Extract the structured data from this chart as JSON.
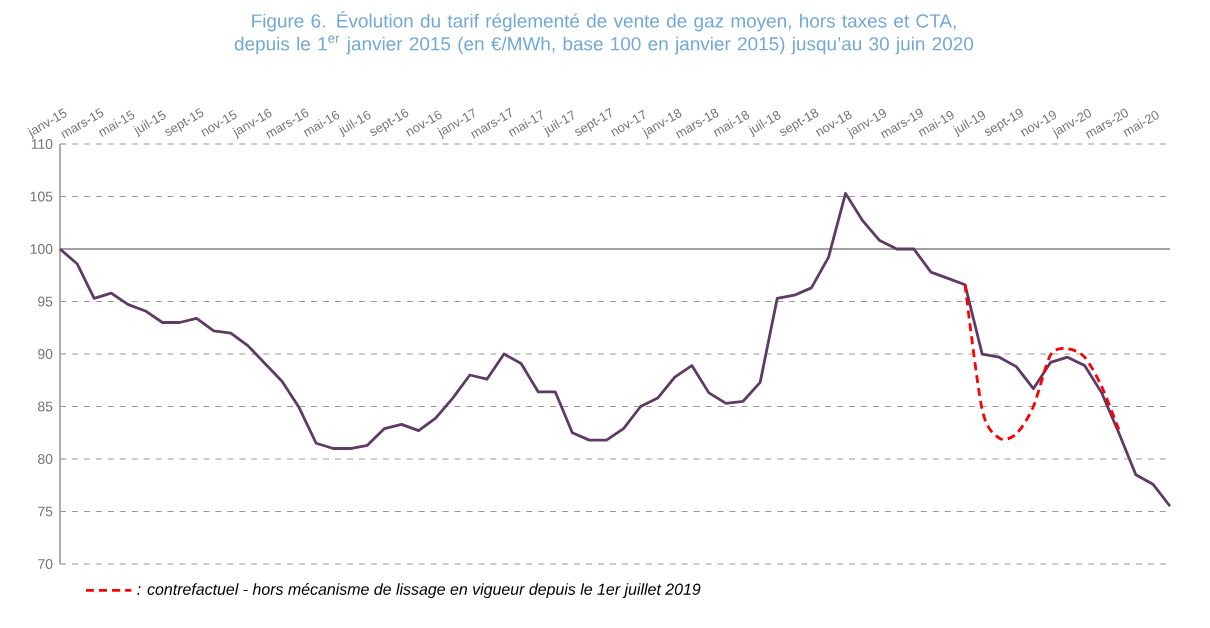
{
  "chart_data": {
    "type": "line",
    "title": "Figure 6. Évolution du tarif réglementé de vente de gaz moyen, hors taxes et CTA, depuis le 1$^{er}$ janvier 2015 (en €/MWh, base 100 en janvier 2015) jusqu’au 30 juin 2020",
    "categories": [
      "janv-15",
      null,
      "mars-15",
      null,
      "mai-15",
      null,
      "juil-15",
      null,
      "sept-15",
      null,
      "nov-15",
      null,
      "janv-16",
      null,
      "mars-16",
      null,
      "mai-16",
      null,
      "juil-16",
      null,
      "sept-16",
      null,
      "nov-16",
      null,
      "janv-17",
      null,
      "mars-17",
      null,
      "mai-17",
      null,
      "juil-17",
      null,
      "sept-17",
      null,
      "nov-17",
      null,
      "janv-18",
      null,
      "mars-18",
      null,
      "mai-18",
      null,
      "juil-18",
      null,
      "sept-18",
      null,
      "nov-18",
      null,
      "janv-19",
      null,
      "mars-19",
      null,
      "mai-19",
      null,
      "juil-19",
      null,
      "sept-19",
      null,
      "nov-19",
      null,
      "janv-20",
      null,
      "mars-20",
      null,
      "mai-20",
      null
    ],
    "series": [
      {
        "color": "#5e3a64",
        "line_style": "solid",
        "values": [
          100,
          98.6,
          95.3,
          95.8,
          94.7,
          94.1,
          93.0,
          93.0,
          93.4,
          92.2,
          92.0,
          90.8,
          89.1,
          87.4,
          84.9,
          81.5,
          81.0,
          81.0,
          81.3,
          82.9,
          83.3,
          82.7,
          83.9,
          85.8,
          88.0,
          87.6,
          90.0,
          89.1,
          86.4,
          86.4,
          82.5,
          81.8,
          81.8,
          82.9,
          85.0,
          85.8,
          87.8,
          88.9,
          86.3,
          85.3,
          85.5,
          87.3,
          95.3,
          95.6,
          96.3,
          99.2,
          105.3,
          102.7,
          100.8,
          100.0,
          100.0,
          97.8,
          97.2,
          96.6,
          90.0,
          89.7,
          88.8,
          86.7,
          89.2,
          89.7,
          88.9,
          86.3,
          82.5,
          78.5,
          77.6,
          75.5
        ]
      },
      {
        "name": ": contrefactuel - hors mécanisme de lissage en vigueur depuis le 1er juillet 2019",
        "color": "#ff0000",
        "line_style": "dashed",
        "values": [
          null,
          null,
          null,
          null,
          null,
          null,
          null,
          null,
          null,
          null,
          null,
          null,
          null,
          null,
          null,
          null,
          null,
          null,
          null,
          null,
          null,
          null,
          null,
          null,
          null,
          null,
          null,
          null,
          null,
          null,
          null,
          null,
          null,
          null,
          null,
          null,
          null,
          null,
          null,
          null,
          null,
          null,
          null,
          null,
          null,
          null,
          null,
          null,
          null,
          null,
          null,
          null,
          null,
          96.6,
          84.7,
          82.0,
          82.4,
          85.0,
          89.9,
          90.5,
          89.7,
          86.9,
          82.8,
          null,
          null,
          null
        ]
      }
    ],
    "ylim": [
      70,
      110
    ],
    "yticks": [
      70,
      75,
      80,
      85,
      90,
      95,
      100,
      105,
      110
    ],
    "ref_lines": [
      {
        "axis": "y",
        "value": 100
      }
    ],
    "grid": "y",
    "legend": "bottom",
    "marker": "none"
  }
}
